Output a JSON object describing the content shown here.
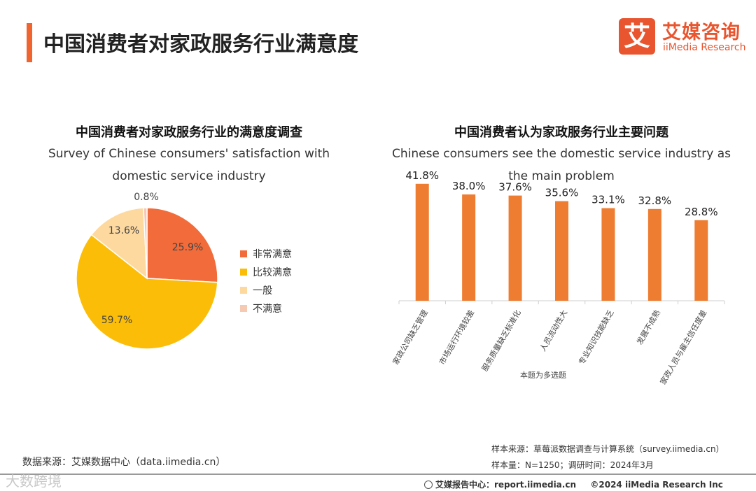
{
  "header": {
    "title": "中国消费者对家政服务行业满意度",
    "logo_cn": "艾媒咨询",
    "logo_en": "iiMedia Research",
    "logo_mark": "艾"
  },
  "colors": {
    "accent": "#f0642f",
    "very_satisfied": "#f26b3a",
    "satisfied": "#fbbd08",
    "neutral": "#fdd9a0",
    "dissatisfied": "#f6c9b3",
    "bar": "#ee7d31"
  },
  "chart_data": [
    {
      "type": "pie",
      "title": "中国消费者对家政服务行业的满意度调查",
      "subtitle_lines": [
        "Survey of Chinese consumers' satisfaction with",
        "domestic service industry"
      ],
      "labels": [
        "非常满意",
        "比较满意",
        "一般",
        "不满意"
      ],
      "values": [
        25.9,
        59.7,
        13.6,
        0.8
      ],
      "value_labels": [
        "25.9%",
        "59.7%",
        "13.6%",
        "0.8%"
      ],
      "legend_position": "right"
    },
    {
      "type": "bar",
      "title": "中国消费者认为家政服务行业主要问题",
      "subtitle_lines": [
        "Chinese consumers see the domestic service industry as",
        "the main problem"
      ],
      "categories": [
        "家政公司缺乏管理",
        "市场运行环境较差",
        "服务质量缺乏标准化",
        "人员流动性大",
        "专业知识技能缺乏",
        "发展不成熟",
        "家政人员与雇主信任度差"
      ],
      "values": [
        41.8,
        38.0,
        37.6,
        35.6,
        33.1,
        32.8,
        28.8
      ],
      "value_labels": [
        "41.8%",
        "38.0%",
        "37.6%",
        "35.6%",
        "33.1%",
        "32.8%",
        "28.8%"
      ],
      "note": "本题为多选题",
      "ylim": [
        0,
        45
      ],
      "grid": false
    }
  ],
  "footer": {
    "data_source": "数据来源：艾媒数据中心（data.iimedia.cn）",
    "sample_source": "样本来源：草莓派数据调查与计算系统（survey.iimedia.cn）",
    "sample_size": "样本量：N=1250；调研时间：2024年3月",
    "report_site": "艾媒报告中心：report.iimedia.cn",
    "copyright": "©2024  iiMedia Research  Inc",
    "watermark": "大数跨境"
  }
}
